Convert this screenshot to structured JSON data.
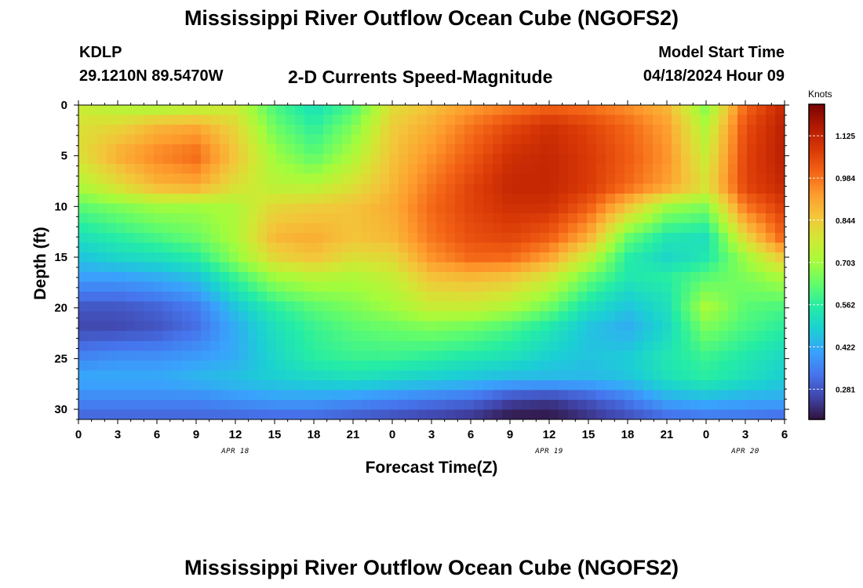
{
  "page": {
    "title_top": "Mississippi River Outflow Ocean Cube (NGOFS2)",
    "title_bottom": "Mississippi River Outflow Ocean Cube (NGOFS2)",
    "station": "KDLP",
    "coords": "29.1210N  89.5470W",
    "subtitle": "2-D Currents Speed-Magnitude",
    "model_start_label": "Model Start Time",
    "model_start_value": "04/18/2024 Hour 09"
  },
  "chart_data": {
    "type": "heatmap",
    "xlabel": "Forecast Time(Z)",
    "ylabel": "Depth (ft)",
    "x_tick_labels": [
      "0",
      "3",
      "6",
      "9",
      "12",
      "15",
      "18",
      "21",
      "0",
      "3",
      "6",
      "9",
      "12",
      "15",
      "18",
      "21",
      "0",
      "3",
      "6"
    ],
    "x_range_hours": [
      0,
      54
    ],
    "date_labels": [
      {
        "text": "APR 18",
        "hour": 12
      },
      {
        "text": "APR 19",
        "hour": 36
      },
      {
        "text": "APR 20",
        "hour": 51
      }
    ],
    "y_ticks": [
      0,
      5,
      10,
      15,
      20,
      25,
      30
    ],
    "ylim": [
      0,
      31
    ],
    "y_inverted": true,
    "colorbar": {
      "unit_label": "Knots",
      "ticks": [
        "1.125",
        "0.984",
        "0.844",
        "0.703",
        "0.562",
        "0.422",
        "0.281"
      ],
      "tick_values": [
        1.125,
        0.984,
        0.844,
        0.703,
        0.562,
        0.422,
        0.281
      ],
      "range": [
        0.18,
        1.23
      ],
      "stops": [
        "#30123b",
        "#4145ab",
        "#4675ed",
        "#39a2fc",
        "#1bcfd4",
        "#24eca6",
        "#61fc6c",
        "#a4fc3b",
        "#d1e834",
        "#f3c63a",
        "#fe9b2d",
        "#f36315",
        "#d93806",
        "#b11901",
        "#7a0403"
      ]
    },
    "grid_hours": [
      0,
      3,
      6,
      9,
      12,
      15,
      18,
      21,
      24,
      27,
      30,
      33,
      36,
      39,
      42,
      45,
      48,
      51,
      54
    ],
    "grid_depths_ft": [
      0,
      2,
      5,
      8,
      10,
      13,
      15,
      17,
      20,
      22,
      25,
      27,
      29,
      31
    ],
    "values_knots": [
      [
        0.76,
        0.72,
        0.7,
        0.72,
        0.76,
        0.6,
        0.52,
        0.6,
        0.8,
        0.86,
        0.92,
        0.96,
        1.0,
        0.98,
        0.94,
        0.88,
        0.66,
        1.0,
        1.12
      ],
      [
        0.8,
        0.82,
        0.88,
        0.9,
        0.82,
        0.64,
        0.56,
        0.66,
        0.84,
        0.9,
        0.98,
        1.05,
        1.1,
        1.06,
        1.0,
        0.92,
        0.72,
        1.04,
        1.14
      ],
      [
        0.8,
        0.9,
        0.96,
        1.0,
        0.86,
        0.7,
        0.62,
        0.72,
        0.86,
        0.94,
        1.02,
        1.1,
        1.12,
        1.08,
        1.02,
        0.94,
        0.76,
        1.06,
        1.14
      ],
      [
        0.72,
        0.8,
        0.88,
        0.9,
        0.8,
        0.74,
        0.74,
        0.8,
        0.88,
        0.98,
        1.06,
        1.12,
        1.12,
        1.08,
        1.0,
        0.92,
        0.8,
        1.06,
        1.12
      ],
      [
        0.62,
        0.66,
        0.7,
        0.7,
        0.72,
        0.82,
        0.84,
        0.86,
        0.9,
        1.0,
        1.06,
        1.1,
        1.1,
        1.02,
        0.86,
        0.7,
        0.66,
        0.98,
        1.08
      ],
      [
        0.52,
        0.56,
        0.6,
        0.64,
        0.72,
        0.88,
        0.9,
        0.86,
        0.88,
        0.98,
        1.04,
        1.06,
        1.02,
        0.9,
        0.64,
        0.54,
        0.52,
        0.82,
        1.02
      ],
      [
        0.46,
        0.5,
        0.52,
        0.56,
        0.68,
        0.82,
        0.86,
        0.8,
        0.82,
        0.94,
        1.0,
        1.0,
        0.92,
        0.76,
        0.56,
        0.5,
        0.54,
        0.7,
        0.86
      ],
      [
        0.4,
        0.4,
        0.42,
        0.46,
        0.58,
        0.7,
        0.74,
        0.72,
        0.76,
        0.86,
        0.88,
        0.86,
        0.78,
        0.64,
        0.54,
        0.56,
        0.62,
        0.66,
        0.72
      ],
      [
        0.28,
        0.28,
        0.3,
        0.34,
        0.46,
        0.56,
        0.62,
        0.66,
        0.7,
        0.76,
        0.76,
        0.72,
        0.64,
        0.52,
        0.46,
        0.52,
        0.72,
        0.62,
        0.6
      ],
      [
        0.26,
        0.26,
        0.28,
        0.32,
        0.42,
        0.52,
        0.58,
        0.62,
        0.64,
        0.66,
        0.64,
        0.6,
        0.54,
        0.46,
        0.42,
        0.5,
        0.66,
        0.6,
        0.56
      ],
      [
        0.36,
        0.38,
        0.38,
        0.4,
        0.42,
        0.5,
        0.56,
        0.58,
        0.58,
        0.56,
        0.54,
        0.52,
        0.48,
        0.46,
        0.48,
        0.54,
        0.58,
        0.54,
        0.5
      ],
      [
        0.42,
        0.42,
        0.42,
        0.44,
        0.46,
        0.48,
        0.5,
        0.52,
        0.5,
        0.48,
        0.46,
        0.44,
        0.44,
        0.44,
        0.46,
        0.52,
        0.56,
        0.52,
        0.48
      ],
      [
        0.36,
        0.36,
        0.36,
        0.36,
        0.38,
        0.4,
        0.4,
        0.38,
        0.36,
        0.34,
        0.32,
        0.26,
        0.24,
        0.28,
        0.34,
        0.42,
        0.44,
        0.42,
        0.42
      ],
      [
        0.3,
        0.3,
        0.3,
        0.3,
        0.3,
        0.3,
        0.3,
        0.28,
        0.26,
        0.24,
        0.22,
        0.18,
        0.18,
        0.22,
        0.26,
        0.3,
        0.32,
        0.32,
        0.3
      ]
    ]
  }
}
